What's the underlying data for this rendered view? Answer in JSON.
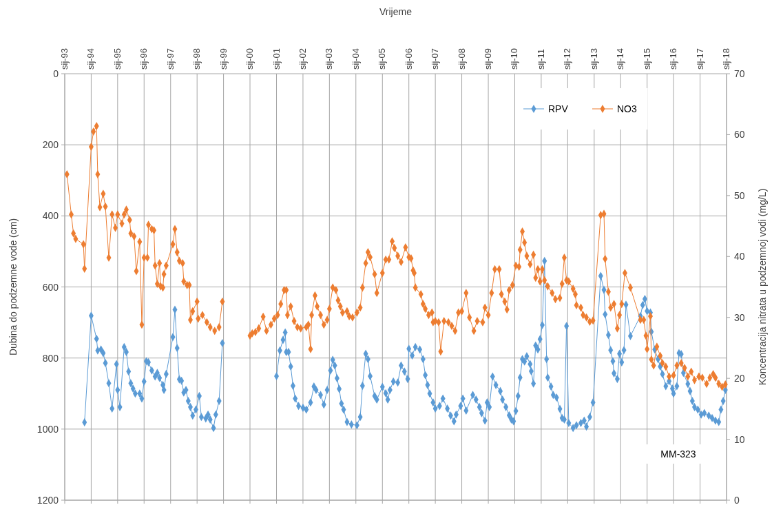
{
  "chart_data": {
    "type": "line",
    "xlabel": "Vrijeme",
    "ylabel": "Dubina do podzemne vode (cm)",
    "y2label": "Koncentracija nitrata u podzemnoj vodi (mg/L)",
    "annotations": [
      "MM-323"
    ],
    "xlim": [
      "1993-01-01",
      "2018-01-01"
    ],
    "xticks": [
      {
        "value": "1993-01",
        "label": "sij-93"
      },
      {
        "value": "1994-01",
        "label": "sij-94"
      },
      {
        "value": "1995-01",
        "label": "sij-95"
      },
      {
        "value": "1996-01",
        "label": "sij-96"
      },
      {
        "value": "1997-01",
        "label": "sij-97"
      },
      {
        "value": "1998-01",
        "label": "sij-98"
      },
      {
        "value": "1999-01",
        "label": "sij-99"
      },
      {
        "value": "2000-01",
        "label": "sij-00"
      },
      {
        "value": "2001-01",
        "label": "sij-01"
      },
      {
        "value": "2002-01",
        "label": "sij-02"
      },
      {
        "value": "2003-01",
        "label": "sij-03"
      },
      {
        "value": "2004-01",
        "label": "sij-04"
      },
      {
        "value": "2005-01",
        "label": "sij-05"
      },
      {
        "value": "2006-01",
        "label": "sij-06"
      },
      {
        "value": "2007-01",
        "label": "sij-07"
      },
      {
        "value": "2008-01",
        "label": "sij-08"
      },
      {
        "value": "2009-01",
        "label": "sij-09"
      },
      {
        "value": "2010-01",
        "label": "sij-10"
      },
      {
        "value": "2011-01",
        "label": "sij-11"
      },
      {
        "value": "2012-01",
        "label": "sij-12"
      },
      {
        "value": "2013-01",
        "label": "sij-13"
      },
      {
        "value": "2014-01",
        "label": "sij-14"
      },
      {
        "value": "2015-01",
        "label": "sij-15"
      },
      {
        "value": "2016-01",
        "label": "sij-16"
      },
      {
        "value": "2017-01",
        "label": "sij-17"
      },
      {
        "value": "2018-01",
        "label": "sij-18"
      }
    ],
    "ylim": [
      1200,
      0
    ],
    "yticks": [
      0,
      200,
      400,
      600,
      800,
      1000,
      1200
    ],
    "y2lim": [
      0,
      70
    ],
    "y2ticks": [
      0,
      10,
      20,
      30,
      40,
      50,
      60,
      70
    ],
    "grid": true,
    "legend": "top right",
    "marker": "diamond",
    "line_style": "solid",
    "series": [
      {
        "name": "RPV",
        "color": "#5b9bd5",
        "axis": "y",
        "x": [
          "1993-10-01",
          "1994-01-01",
          "1994-03-16",
          "1994-04-01",
          "1994-05-16",
          "1994-06-16",
          "1994-07-16",
          "1994-09-01",
          "1994-10-16",
          "1994-12-16",
          "1995-01-01",
          "1995-02-01",
          "1995-04-01",
          "1995-05-01",
          "1995-06-01",
          "1995-07-01",
          "1995-08-01",
          "1995-09-01",
          "1995-11-01",
          "1995-12-01",
          "1996-01-01",
          "1996-02-01",
          "1996-03-01",
          "1996-04-16",
          "1996-06-01",
          "1996-07-01",
          "1996-08-01",
          "1996-09-16",
          "1996-10-01",
          "1996-11-01",
          "1997-02-01",
          "1997-03-01",
          "1997-04-01",
          "1997-05-01",
          "1997-06-01",
          "1997-07-01",
          "1997-08-01",
          "1997-09-01",
          "1997-10-01",
          "1997-11-01",
          "1997-12-16",
          "1998-02-01",
          "1998-03-01",
          "1998-05-01",
          "1998-06-01",
          "1998-07-01",
          "1998-08-16",
          "1998-09-16",
          "1998-11-01",
          "1998-12-16",
          "1999-11-01",
          "2001-01-01",
          "2001-02-16",
          "2001-04-01",
          "2001-05-01",
          "2001-05-16",
          "2001-06-16",
          "2001-07-16",
          "2001-08-16",
          "2001-09-16",
          "2001-11-01",
          "2002-01-01",
          "2002-02-16",
          "2002-04-16",
          "2002-06-01",
          "2002-07-01",
          "2002-09-01",
          "2002-10-16",
          "2002-12-01",
          "2003-01-16",
          "2003-02-16",
          "2003-03-16",
          "2003-04-16",
          "2003-05-16",
          "2003-06-16",
          "2003-07-16",
          "2003-09-01",
          "2003-11-01",
          "2004-01-16",
          "2004-03-01",
          "2004-04-01",
          "2004-05-16",
          "2004-06-16",
          "2004-07-16",
          "2004-09-16",
          "2004-10-16",
          "2005-01-01",
          "2005-02-16",
          "2005-03-16",
          "2005-04-16",
          "2005-06-01",
          "2005-08-01",
          "2005-09-16",
          "2005-11-01",
          "2005-12-16",
          "2006-01-01",
          "2006-02-16",
          "2006-04-01",
          "2006-06-01",
          "2006-07-16",
          "2006-08-16",
          "2006-09-16",
          "2006-10-16",
          "2006-12-01",
          "2007-01-01",
          "2007-03-01",
          "2007-04-16",
          "2007-06-16",
          "2007-08-01",
          "2007-09-16",
          "2007-10-16",
          "2007-12-16",
          "2008-01-16",
          "2008-03-01",
          "2008-06-01",
          "2008-07-16",
          "2008-09-01",
          "2008-10-01",
          "2008-11-16",
          "2008-12-16",
          "2009-01-16",
          "2009-03-01",
          "2009-04-16",
          "2009-06-16",
          "2009-07-16",
          "2009-09-01",
          "2009-10-16",
          "2009-11-16",
          "2009-12-16",
          "2010-01-16",
          "2010-02-16",
          "2010-03-16",
          "2010-04-16",
          "2010-05-16",
          "2010-06-16",
          "2010-08-01",
          "2010-08-16",
          "2010-09-16",
          "2010-10-16",
          "2010-11-16",
          "2010-12-16",
          "2011-01-16",
          "2011-02-16",
          "2011-03-16",
          "2011-04-01",
          "2011-05-16",
          "2011-06-16",
          "2011-08-01",
          "2011-09-16",
          "2011-10-16",
          "2011-11-16",
          "2011-12-16",
          "2012-01-16",
          "2012-03-16",
          "2012-05-01",
          "2012-07-01",
          "2012-08-16",
          "2012-09-16",
          "2012-11-01",
          "2012-12-16",
          "2013-04-01",
          "2013-05-16",
          "2013-06-01",
          "2013-07-16",
          "2013-08-16",
          "2013-09-16",
          "2013-10-01",
          "2013-11-16",
          "2013-12-16",
          "2014-01-16",
          "2014-02-16",
          "2014-03-16",
          "2014-05-16",
          "2014-10-01",
          "2014-11-01",
          "2014-12-01",
          "2015-01-01",
          "2015-02-16",
          "2015-03-01",
          "2015-04-16",
          "2015-06-01",
          "2015-07-01",
          "2015-08-01",
          "2015-09-16",
          "2015-11-01",
          "2015-12-16",
          "2016-01-01",
          "2016-02-16",
          "2016-03-16",
          "2016-04-16",
          "2016-05-16",
          "2016-07-16",
          "2016-08-16",
          "2016-09-16",
          "2016-10-16",
          "2016-12-01",
          "2017-01-16",
          "2017-03-01",
          "2017-05-01",
          "2017-06-16",
          "2017-08-01",
          "2017-09-16",
          "2017-10-16",
          "2017-11-16",
          "2017-12-16"
        ],
        "values": [
          981,
          681,
          746,
          779,
          776,
          786,
          814,
          871,
          942,
          817,
          890,
          938,
          769,
          783,
          838,
          871,
          886,
          900,
          900,
          914,
          866,
          809,
          812,
          835,
          852,
          842,
          856,
          876,
          890,
          845,
          741,
          664,
          772,
          860,
          864,
          897,
          890,
          921,
          938,
          962,
          945,
          907,
          966,
          970,
          959,
          973,
          997,
          959,
          921,
          758,
          null,
          851,
          779,
          749,
          728,
          783,
          783,
          824,
          878,
          914,
          935,
          940,
          945,
          925,
          880,
          890,
          904,
          931,
          890,
          835,
          805,
          821,
          857,
          887,
          928,
          945,
          980,
          987,
          989,
          966,
          878,
          788,
          803,
          851,
          907,
          917,
          881,
          899,
          917,
          890,
          866,
          869,
          821,
          838,
          859,
          774,
          793,
          769,
          776,
          803,
          848,
          876,
          900,
          925,
          942,
          935,
          914,
          942,
          962,
          978,
          959,
          935,
          914,
          948,
          904,
          917,
          938,
          955,
          976,
          925,
          938,
          852,
          876,
          893,
          917,
          938,
          961,
          973,
          978,
          949,
          907,
          855,
          803,
          810,
          795,
          817,
          837,
          872,
          765,
          776,
          747,
          707,
          527,
          803,
          855,
          880,
          904,
          911,
          943,
          969,
          973,
          710,
          983,
          997,
          989,
          983,
          976,
          993,
          966,
          925,
          569,
          608,
          677,
          735,
          778,
          809,
          843,
          859,
          788,
          812,
          778,
          650,
          738,
          682,
          651,
          634,
          668,
          672,
          726,
          776,
          803,
          824,
          845,
          879,
          865,
          886,
          900,
          879,
          786,
          789,
          842,
          873,
          893,
          921,
          938,
          945,
          959,
          955,
          962,
          969,
          976,
          980,
          945,
          921,
          890
        ]
      },
      {
        "name": "NO3",
        "color": "#ed7d31",
        "axis": "y2",
        "x": [
          "1993-02-01",
          "1993-04-01",
          "1993-05-01",
          "1993-06-01",
          "1993-09-16",
          "1993-10-01",
          "1994-01-01",
          "1994-02-01",
          "1994-03-16",
          "1994-04-01",
          "1994-05-01",
          "1994-06-16",
          "1994-07-16",
          "1994-09-01",
          "1994-10-16",
          "1994-12-01",
          "1995-01-01",
          "1995-03-01",
          "1995-04-01",
          "1995-05-01",
          "1995-06-16",
          "1995-07-01",
          "1995-08-16",
          "1995-09-16",
          "1995-11-01",
          "1995-12-01",
          "1996-01-01",
          "1996-02-16",
          "1996-03-01",
          "1996-04-16",
          "1996-05-16",
          "1996-06-01",
          "1996-07-01",
          "1996-08-01",
          "1996-08-16",
          "1996-09-16",
          "1996-10-01",
          "1996-11-01",
          "1997-02-01",
          "1997-03-01",
          "1997-04-01",
          "1997-05-01",
          "1997-06-16",
          "1997-07-01",
          "1997-08-16",
          "1997-09-16",
          "1997-10-01",
          "1997-11-01",
          "1998-01-01",
          "1998-01-16",
          "1998-03-16",
          "1998-05-16",
          "1998-07-01",
          "1998-09-01",
          "1998-11-01",
          "1998-12-16",
          "1999-07-01",
          "2000-01-01",
          "2000-02-01",
          "2000-03-16",
          "2000-05-01",
          "2000-07-01",
          "2000-08-16",
          "2000-10-16",
          "2000-12-01",
          "2001-01-16",
          "2001-03-01",
          "2001-04-16",
          "2001-05-16",
          "2001-06-01",
          "2001-07-16",
          "2001-09-01",
          "2001-10-16",
          "2001-12-01",
          "2002-02-16",
          "2002-03-16",
          "2002-04-16",
          "2002-05-01",
          "2002-06-16",
          "2002-07-16",
          "2002-09-01",
          "2002-10-16",
          "2002-12-01",
          "2003-01-01",
          "2003-02-16",
          "2003-04-01",
          "2003-05-01",
          "2003-06-01",
          "2003-07-01",
          "2003-09-01",
          "2003-10-01",
          "2003-11-16",
          "2004-01-16",
          "2004-03-01",
          "2004-04-01",
          "2004-05-16",
          "2004-06-16",
          "2004-07-16",
          "2004-09-16",
          "2004-10-16",
          "2005-01-01",
          "2005-02-16",
          "2005-04-01",
          "2005-05-16",
          "2005-06-16",
          "2005-08-01",
          "2005-09-16",
          "2005-11-16",
          "2006-01-01",
          "2006-02-01",
          "2006-03-01",
          "2006-03-16",
          "2006-04-01",
          "2006-06-16",
          "2006-07-16",
          "2006-08-16",
          "2006-10-01",
          "2006-11-16",
          "2006-12-01",
          "2007-01-01",
          "2007-02-16",
          "2007-03-16",
          "2007-05-01",
          "2007-07-01",
          "2007-08-16",
          "2007-10-01",
          "2007-11-16",
          "2008-01-01",
          "2008-03-01",
          "2008-04-16",
          "2008-06-16",
          "2008-08-01",
          "2008-10-16",
          "2008-11-16",
          "2009-01-01",
          "2009-02-16",
          "2009-04-01",
          "2009-06-01",
          "2009-07-01",
          "2009-08-16",
          "2009-09-16",
          "2009-10-16",
          "2009-12-01",
          "2010-01-16",
          "2010-03-01",
          "2010-03-16",
          "2010-04-16",
          "2010-05-16",
          "2010-06-16",
          "2010-08-01",
          "2010-09-16",
          "2010-10-16",
          "2010-11-16",
          "2010-12-16",
          "2011-01-16",
          "2011-02-16",
          "2011-04-01",
          "2011-06-01",
          "2011-07-16",
          "2011-09-16",
          "2011-10-16",
          "2011-11-16",
          "2011-12-16",
          "2012-01-16",
          "2012-03-16",
          "2012-04-16",
          "2012-05-01",
          "2012-07-01",
          "2012-08-01",
          "2012-09-16",
          "2012-11-01",
          "2012-12-16",
          "2013-04-01",
          "2013-05-16",
          "2013-06-01",
          "2013-07-16",
          "2013-08-16",
          "2013-10-01",
          "2013-11-16",
          "2013-12-16",
          "2014-01-16",
          "2014-03-01",
          "2014-05-16",
          "2014-10-01",
          "2014-11-16",
          "2014-12-16",
          "2015-01-01",
          "2015-02-16",
          "2015-03-01",
          "2015-04-01",
          "2015-05-16",
          "2015-07-01",
          "2015-08-01",
          "2015-09-16",
          "2015-11-01",
          "2016-01-01",
          "2016-02-16",
          "2016-04-16",
          "2016-06-01",
          "2016-07-16",
          "2016-09-01",
          "2016-10-16",
          "2016-12-16",
          "2017-02-01",
          "2017-04-01",
          "2017-05-16",
          "2017-07-01",
          "2017-08-01",
          "2017-09-16",
          "2017-11-01",
          "2017-12-16"
        ],
        "values": [
          53.5,
          46.9,
          43.8,
          42.9,
          42.0,
          38.0,
          58.0,
          60.5,
          61.4,
          53.5,
          48.1,
          50.3,
          48.2,
          39.8,
          46.9,
          44.7,
          46.9,
          45.4,
          46.9,
          47.7,
          46.0,
          43.8,
          43.3,
          37.6,
          42.4,
          28.8,
          39.8,
          39.8,
          45.2,
          44.5,
          44.3,
          38.5,
          35.5,
          38.9,
          35.1,
          34.9,
          37.1,
          38.5,
          42.0,
          44.5,
          40.7,
          39.3,
          38.9,
          35.9,
          35.3,
          35.3,
          29.6,
          31.0,
          32.6,
          29.8,
          30.4,
          29.2,
          28.4,
          27.8,
          28.4,
          32.6,
          null,
          27.0,
          27.4,
          27.6,
          28.2,
          30.1,
          27.8,
          28.8,
          29.8,
          30.4,
          32.2,
          34.5,
          34.5,
          30.4,
          31.8,
          29.4,
          28.4,
          28.2,
          28.4,
          28.8,
          24.8,
          30.4,
          33.6,
          31.8,
          30.4,
          28.8,
          29.6,
          31.4,
          34.9,
          34.5,
          32.8,
          31.8,
          30.8,
          31.0,
          30.2,
          30.0,
          30.8,
          31.6,
          34.9,
          38.9,
          40.7,
          39.9,
          37.1,
          34.0,
          37.3,
          39.5,
          39.5,
          42.5,
          41.4,
          40.1,
          39.1,
          41.5,
          39.9,
          39.7,
          37.7,
          37.3,
          34.9,
          33.8,
          32.2,
          31.4,
          30.4,
          30.8,
          29.2,
          29.4,
          29.2,
          24.4,
          29.4,
          29.2,
          28.6,
          27.8,
          30.8,
          31.0,
          34.0,
          30.0,
          27.8,
          29.4,
          29.2,
          31.6,
          30.4,
          34.0,
          37.9,
          37.9,
          33.8,
          32.6,
          31.3,
          34.5,
          35.3,
          38.5,
          38.3,
          41.1,
          44.1,
          42.3,
          40.1,
          38.7,
          40.3,
          36.5,
          37.9,
          35.9,
          37.9,
          36.1,
          35.1,
          34.0,
          33.0,
          33.2,
          35.5,
          39.8,
          36.1,
          35.9,
          34.7,
          33.8,
          32.0,
          31.6,
          30.4,
          30.0,
          29.3,
          29.5,
          46.8,
          47.0,
          39.6,
          34.2,
          31.6,
          32.2,
          28.2,
          30.4,
          32.2,
          37.3,
          34.9,
          29.6,
          29.6,
          27.0,
          24.8,
          30.2,
          23.1,
          22.1,
          25.2,
          23.7,
          22.5,
          21.9,
          20.3,
          20.5,
          22.1,
          22.5,
          21.7,
          20.3,
          21.1,
          19.7,
          20.3,
          20.1,
          19.1,
          20.1,
          20.7,
          20.1,
          19.1,
          18.6,
          19.0
        ]
      }
    ]
  }
}
